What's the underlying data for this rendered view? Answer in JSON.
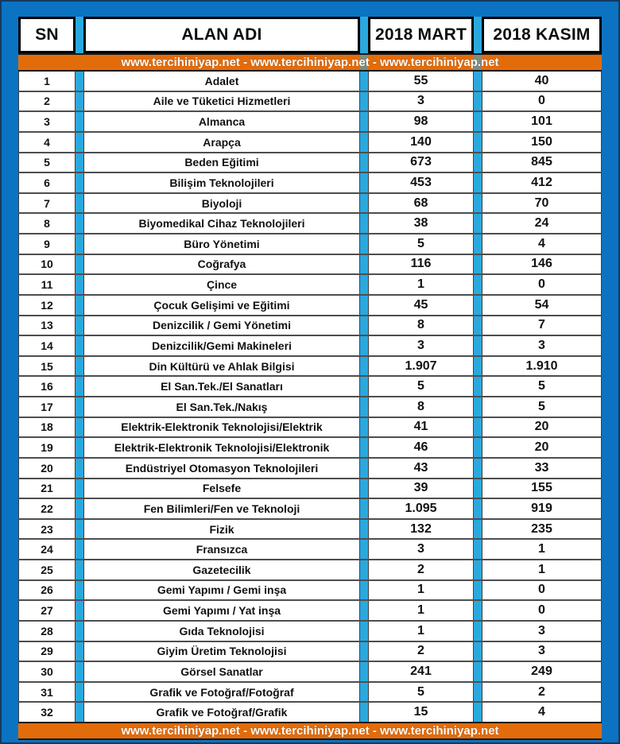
{
  "banner_text": "www.tercihiniyap.net - www.tercihiniyap.net - www.tercihiniyap.net",
  "colors": {
    "frame_blue": "#0b73c2",
    "gap_cyan": "#2aa9df",
    "banner_orange": "#e36c0a",
    "banner_text_white": "#ffffff",
    "row_separator_gray": "#4e4e4e",
    "cell_white": "#ffffff",
    "text_black": "#111111",
    "outer_border_navy": "#15395f"
  },
  "chart_data": {
    "type": "table",
    "title": "",
    "columns": [
      "SN",
      "ALAN ADI",
      "2018 MART",
      "2018 KASIM"
    ],
    "rows": [
      [
        "1",
        "Adalet",
        "55",
        "40"
      ],
      [
        "2",
        "Aile ve Tüketici Hizmetleri",
        "3",
        "0"
      ],
      [
        "3",
        "Almanca",
        "98",
        "101"
      ],
      [
        "4",
        "Arapça",
        "140",
        "150"
      ],
      [
        "5",
        "Beden Eğitimi",
        "673",
        "845"
      ],
      [
        "6",
        "Bilişim Teknolojileri",
        "453",
        "412"
      ],
      [
        "7",
        "Biyoloji",
        "68",
        "70"
      ],
      [
        "8",
        "Biyomedikal Cihaz Teknolojileri",
        "38",
        "24"
      ],
      [
        "9",
        "Büro Yönetimi",
        "5",
        "4"
      ],
      [
        "10",
        "Coğrafya",
        "116",
        "146"
      ],
      [
        "11",
        "Çince",
        "1",
        "0"
      ],
      [
        "12",
        "Çocuk Gelişimi ve Eğitimi",
        "45",
        "54"
      ],
      [
        "13",
        "Denizcilik / Gemi Yönetimi",
        "8",
        "7"
      ],
      [
        "14",
        "Denizcilik/Gemi Makineleri",
        "3",
        "3"
      ],
      [
        "15",
        "Din Kültürü ve Ahlak Bilgisi",
        "1.907",
        "1.910"
      ],
      [
        "16",
        "El San.Tek./El Sanatları",
        "5",
        "5"
      ],
      [
        "17",
        "El San.Tek./Nakış",
        "8",
        "5"
      ],
      [
        "18",
        "Elektrik-Elektronik Teknolojisi/Elektrik",
        "41",
        "20"
      ],
      [
        "19",
        "Elektrik-Elektronik Teknolojisi/Elektronik",
        "46",
        "20"
      ],
      [
        "20",
        "Endüstriyel Otomasyon Teknolojileri",
        "43",
        "33"
      ],
      [
        "21",
        "Felsefe",
        "39",
        "155"
      ],
      [
        "22",
        "Fen Bilimleri/Fen ve Teknoloji",
        "1.095",
        "919"
      ],
      [
        "23",
        "Fizik",
        "132",
        "235"
      ],
      [
        "24",
        "Fransızca",
        "3",
        "1"
      ],
      [
        "25",
        "Gazetecilik",
        "2",
        "1"
      ],
      [
        "26",
        "Gemi Yapımı / Gemi inşa",
        "1",
        "0"
      ],
      [
        "27",
        "Gemi Yapımı / Yat inşa",
        "1",
        "0"
      ],
      [
        "28",
        "Gıda Teknolojisi",
        "1",
        "3"
      ],
      [
        "29",
        "Giyim Üretim Teknolojisi",
        "2",
        "3"
      ],
      [
        "30",
        "Görsel Sanatlar",
        "241",
        "249"
      ],
      [
        "31",
        "Grafik ve Fotoğraf/Fotoğraf",
        "5",
        "2"
      ],
      [
        "32",
        "Grafik ve Fotoğraf/Grafik",
        "15",
        "4"
      ]
    ]
  }
}
